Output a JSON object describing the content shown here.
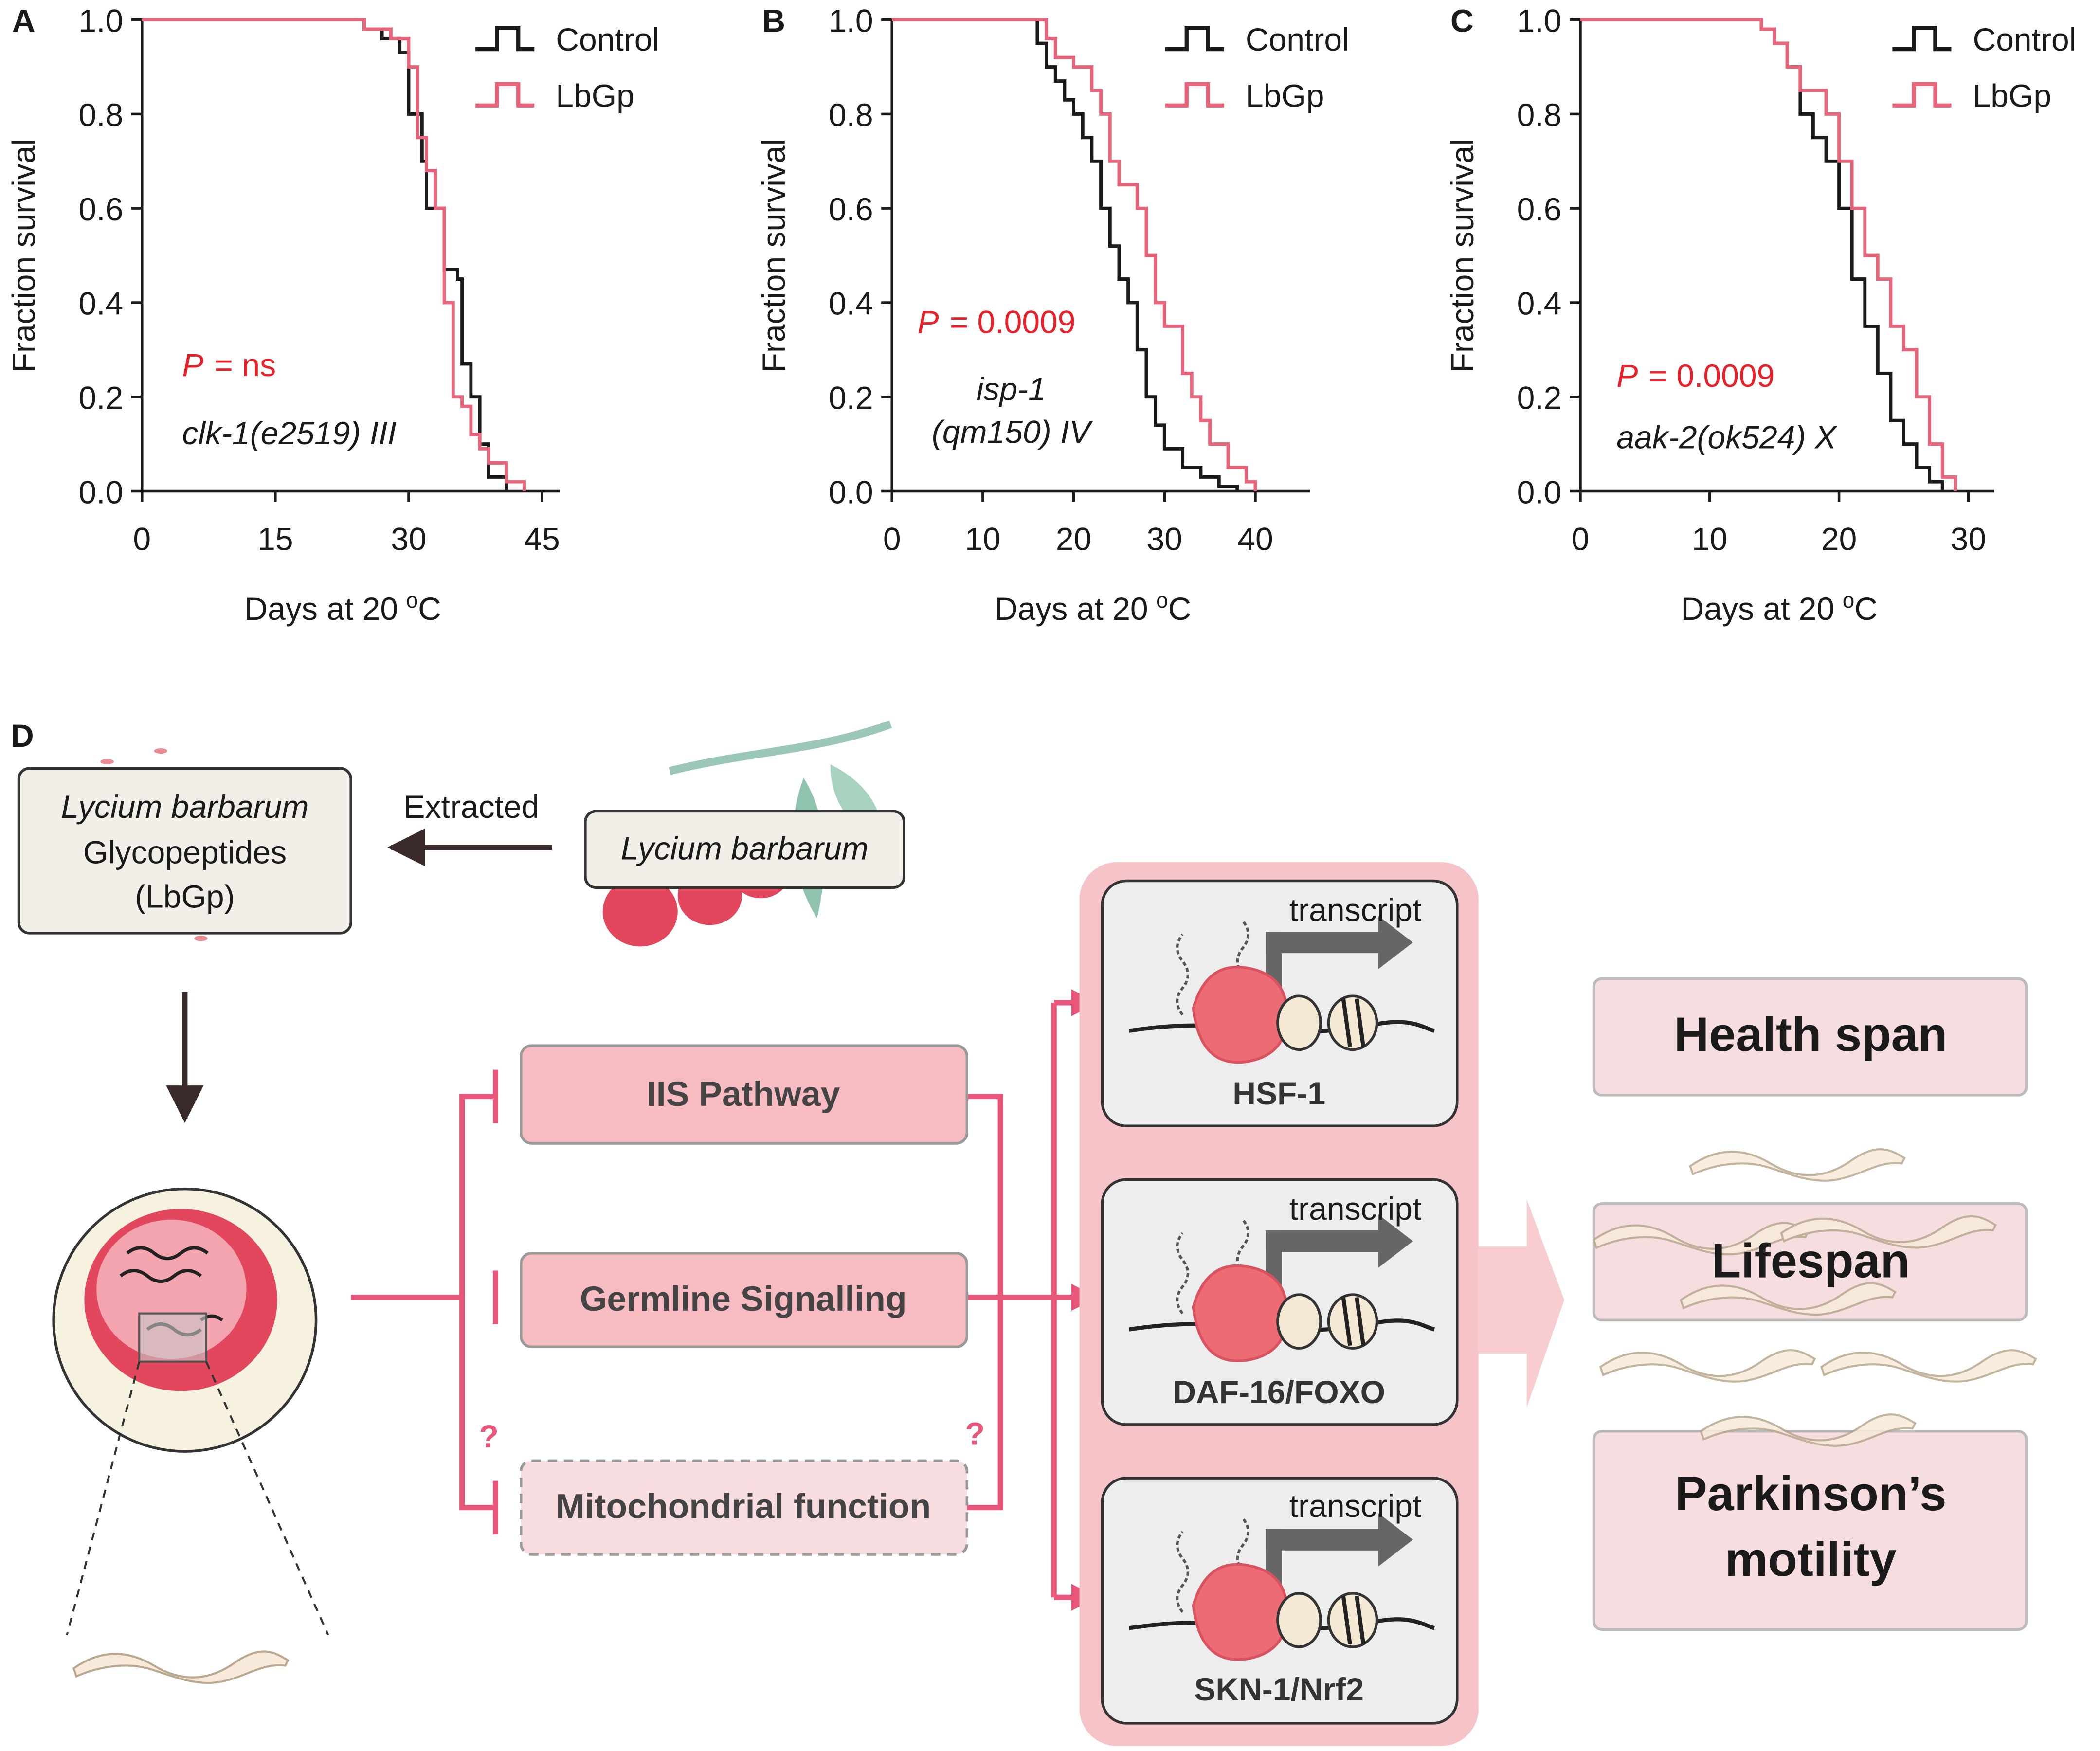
{
  "chart_data": [
    {
      "panel": "A",
      "type": "step",
      "ylabel": "Fraction survival",
      "xlabel": [
        "Days at 20",
        "o",
        "C"
      ],
      "xlim": [
        0,
        47
      ],
      "xticks": [
        0,
        15,
        30,
        45
      ],
      "ylim": [
        0,
        1
      ],
      "yticks": [
        {
          "value": 0,
          "label": "0.0"
        },
        0.2,
        0.4,
        0.6,
        0.8,
        {
          "value": 1,
          "label": "1.0"
        }
      ],
      "p_symbol": "P",
      "p_text": "= ns",
      "strain": [
        "clk-1(e2519) III"
      ],
      "series": [
        {
          "name": "Control",
          "color": "#1a1a1a",
          "x": [
            0,
            25,
            27,
            29,
            30,
            31.5,
            32,
            34,
            35.5,
            36,
            37,
            38,
            39,
            41
          ],
          "values": [
            1,
            0.98,
            0.96,
            0.93,
            0.8,
            0.7,
            0.6,
            0.47,
            0.45,
            0.27,
            0.2,
            0.1,
            0.03,
            0
          ]
        },
        {
          "name": "LbGp",
          "color": "#e8647a",
          "x": [
            0,
            25,
            28,
            30,
            31,
            32,
            33,
            34,
            35,
            36,
            37,
            38,
            39,
            41,
            43
          ],
          "values": [
            1,
            0.98,
            0.96,
            0.9,
            0.75,
            0.68,
            0.6,
            0.4,
            0.2,
            0.18,
            0.12,
            0.09,
            0.06,
            0.02,
            0
          ]
        }
      ]
    },
    {
      "panel": "B",
      "type": "step",
      "ylabel": "Fraction survival",
      "xlabel": [
        "Days at 20",
        "o",
        "C"
      ],
      "xlim": [
        0,
        46
      ],
      "xticks": [
        0,
        10,
        20,
        30,
        40
      ],
      "ylim": [
        0,
        1
      ],
      "yticks": [
        {
          "value": 0,
          "label": "0.0"
        },
        0.2,
        0.4,
        0.6,
        0.8,
        {
          "value": 1,
          "label": "1.0"
        }
      ],
      "p_symbol": "P",
      "p_text": "= 0.0009",
      "strain": [
        "isp-1",
        "(qm150) IV"
      ],
      "series": [
        {
          "name": "Control",
          "color": "#1a1a1a",
          "x": [
            0,
            16,
            17,
            18,
            19,
            20,
            21,
            22,
            23,
            24,
            25,
            26,
            27,
            28,
            29,
            30,
            32,
            34,
            36,
            38
          ],
          "values": [
            1,
            0.95,
            0.9,
            0.87,
            0.83,
            0.8,
            0.75,
            0.7,
            0.6,
            0.52,
            0.45,
            0.4,
            0.3,
            0.2,
            0.14,
            0.09,
            0.05,
            0.03,
            0.01,
            0
          ]
        },
        {
          "name": "LbGp",
          "color": "#e8647a",
          "x": [
            0,
            17,
            18,
            20,
            22,
            23,
            24,
            25,
            27,
            28,
            29,
            30,
            32,
            33,
            34,
            35,
            37,
            39,
            40
          ],
          "values": [
            1,
            0.96,
            0.92,
            0.9,
            0.85,
            0.8,
            0.7,
            0.65,
            0.6,
            0.5,
            0.4,
            0.35,
            0.25,
            0.2,
            0.15,
            0.1,
            0.05,
            0.02,
            0
          ]
        }
      ]
    },
    {
      "panel": "C",
      "type": "step",
      "ylabel": "Fraction survival",
      "xlabel": [
        "Days at 20",
        "o",
        "C"
      ],
      "xlim": [
        0,
        32
      ],
      "xticks": [
        0,
        10,
        20,
        30
      ],
      "ylim": [
        0,
        1
      ],
      "yticks": [
        {
          "value": 0,
          "label": "0.0"
        },
        0.2,
        0.4,
        0.6,
        0.8,
        {
          "value": 1,
          "label": "1.0"
        }
      ],
      "p_symbol": "P",
      "p_text": "= 0.0009",
      "strain": [
        "aak-2(ok524) X"
      ],
      "series": [
        {
          "name": "Control",
          "color": "#1a1a1a",
          "x": [
            0,
            14,
            15,
            16,
            17,
            18,
            19,
            20,
            21,
            22,
            23,
            24,
            25,
            26,
            27,
            28
          ],
          "values": [
            1,
            0.98,
            0.95,
            0.9,
            0.8,
            0.75,
            0.7,
            0.6,
            0.45,
            0.35,
            0.25,
            0.15,
            0.1,
            0.05,
            0.02,
            0
          ]
        },
        {
          "name": "LbGp",
          "color": "#e8647a",
          "x": [
            0,
            14,
            15,
            16,
            17,
            19,
            20,
            21,
            22,
            23,
            24,
            25,
            26,
            27,
            28,
            29
          ],
          "values": [
            1,
            0.98,
            0.95,
            0.9,
            0.85,
            0.8,
            0.7,
            0.6,
            0.5,
            0.45,
            0.35,
            0.3,
            0.2,
            0.1,
            0.03,
            0
          ]
        }
      ]
    }
  ],
  "diagram": {
    "panel": "D",
    "source_extract": [
      "Lycium barbarum",
      "Glycopeptides",
      "(LbGp)"
    ],
    "arrow_label": "Extracted",
    "source": "Lycium barbarum",
    "pathways": [
      "IIS Pathway",
      "Germline Signalling",
      "Mitochondrial function"
    ],
    "unknown_marks": [
      "?",
      "?"
    ],
    "factors": [
      {
        "action": "transcript",
        "name": "HSF-1"
      },
      {
        "action": "transcript",
        "name": "DAF-16/FOXO"
      },
      {
        "action": "transcript",
        "name": "SKN-1/Nrf2"
      }
    ],
    "outcomes": [
      [
        "Health span"
      ],
      [
        "Lifespan"
      ],
      [
        "Parkinson’s",
        "motility"
      ]
    ]
  }
}
